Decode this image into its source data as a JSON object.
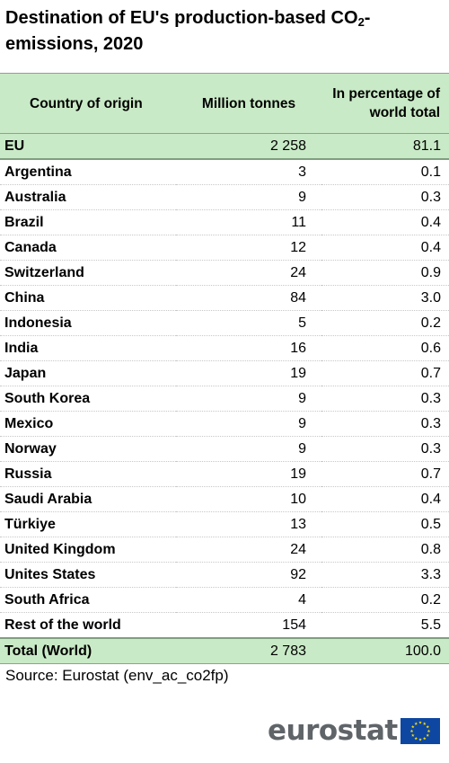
{
  "title": {
    "text_before": "Destination of EU's production-based CO",
    "subscript": "2",
    "text_after": "-emissions, 2020"
  },
  "table": {
    "headers": {
      "country": "Country of origin",
      "million_tonnes": "Million tonnes",
      "percentage": "In percentage of world total"
    },
    "eu_row": {
      "country": "EU",
      "million_tonnes": "2 258",
      "percentage": "81.1"
    },
    "rows": [
      {
        "country": "Argentina",
        "million_tonnes": "3",
        "percentage": "0.1"
      },
      {
        "country": "Australia",
        "million_tonnes": "9",
        "percentage": "0.3"
      },
      {
        "country": "Brazil",
        "million_tonnes": "11",
        "percentage": "0.4"
      },
      {
        "country": "Canada",
        "million_tonnes": "12",
        "percentage": "0.4"
      },
      {
        "country": "Switzerland",
        "million_tonnes": "24",
        "percentage": "0.9"
      },
      {
        "country": "China",
        "million_tonnes": "84",
        "percentage": "3.0"
      },
      {
        "country": "Indonesia",
        "million_tonnes": "5",
        "percentage": "0.2"
      },
      {
        "country": "India",
        "million_tonnes": "16",
        "percentage": "0.6"
      },
      {
        "country": "Japan",
        "million_tonnes": "19",
        "percentage": "0.7"
      },
      {
        "country": "South Korea",
        "million_tonnes": "9",
        "percentage": "0.3"
      },
      {
        "country": "Mexico",
        "million_tonnes": "9",
        "percentage": "0.3"
      },
      {
        "country": "Norway",
        "million_tonnes": "9",
        "percentage": "0.3"
      },
      {
        "country": "Russia",
        "million_tonnes": "19",
        "percentage": "0.7"
      },
      {
        "country": "Saudi Arabia",
        "million_tonnes": "10",
        "percentage": "0.4"
      },
      {
        "country": "Türkiye",
        "million_tonnes": "13",
        "percentage": "0.5"
      },
      {
        "country": "United Kingdom",
        "million_tonnes": "24",
        "percentage": "0.8"
      },
      {
        "country": "Unites States",
        "million_tonnes": "92",
        "percentage": "3.3"
      },
      {
        "country": "South Africa",
        "million_tonnes": "4",
        "percentage": "0.2"
      },
      {
        "country": "Rest of the world",
        "million_tonnes": "154",
        "percentage": "5.5"
      }
    ],
    "total_row": {
      "country": "Total (World)",
      "million_tonnes": "2 783",
      "percentage": "100.0"
    }
  },
  "source": "Source: Eurostat (env_ac_co2fp)",
  "logo": {
    "text": "eurostat",
    "flag_icon": "eu-flag-icon"
  },
  "colors": {
    "header_fill": "#c9eac6",
    "logo_text": "#5f6468",
    "flag_blue": "#0e47a1",
    "flag_stars": "#ffdd00"
  }
}
